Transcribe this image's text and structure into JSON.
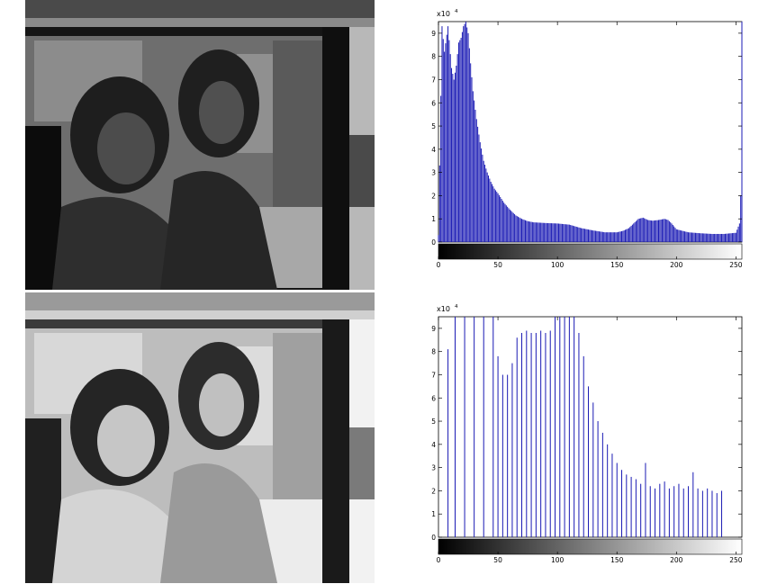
{
  "chart_data": [
    {
      "type": "bar",
      "title": "",
      "xlabel": "",
      "ylabel": "",
      "exponent_label": "x10",
      "exponent_power": "4",
      "xlim": [
        0,
        255
      ],
      "ylim": [
        0,
        9.5
      ],
      "x_ticks": [
        0,
        50,
        100,
        150,
        200,
        250
      ],
      "y_ticks": [
        0,
        1,
        2,
        3,
        4,
        5,
        6,
        7,
        8,
        9
      ],
      "grid": false,
      "series": [
        {
          "comment_anchor_mode": "interpolated",
          "x": [
            0,
            3,
            5,
            8,
            11,
            13,
            15,
            17,
            19,
            21,
            23,
            25,
            27,
            29,
            32,
            35,
            38,
            41,
            44,
            47,
            50,
            55,
            60,
            65,
            70,
            75,
            80,
            90,
            100,
            110,
            120,
            130,
            140,
            150,
            155,
            160,
            165,
            168,
            172,
            176,
            180,
            185,
            190,
            193,
            196,
            200,
            210,
            220,
            230,
            240,
            250,
            253,
            254,
            255
          ],
          "values": [
            0.3,
            9.3,
            8.2,
            9.3,
            7.5,
            7.0,
            7.6,
            8.6,
            8.8,
            9.3,
            9.5,
            9.0,
            7.7,
            6.5,
            5.3,
            4.3,
            3.5,
            3.0,
            2.6,
            2.3,
            2.1,
            1.7,
            1.4,
            1.15,
            1.0,
            0.9,
            0.85,
            0.82,
            0.8,
            0.75,
            0.6,
            0.5,
            0.42,
            0.42,
            0.48,
            0.6,
            0.85,
            1.0,
            1.05,
            0.95,
            0.92,
            0.95,
            1.0,
            0.95,
            0.8,
            0.55,
            0.42,
            0.38,
            0.35,
            0.35,
            0.4,
            0.8,
            2.0,
            9.5
          ]
        }
      ]
    },
    {
      "type": "bar",
      "title": "",
      "xlabel": "",
      "ylabel": "",
      "exponent_label": "x10",
      "exponent_power": "4",
      "xlim": [
        0,
        255
      ],
      "ylim": [
        0,
        9.5
      ],
      "x_ticks": [
        0,
        50,
        100,
        150,
        200,
        250
      ],
      "y_ticks": [
        0,
        1,
        2,
        3,
        4,
        5,
        6,
        7,
        8,
        9
      ],
      "grid": false,
      "series": [
        {
          "x": [
            0,
            4,
            8,
            12,
            14,
            18,
            22,
            26,
            30,
            34,
            38,
            42,
            46,
            50,
            54,
            58,
            62,
            66,
            70,
            74,
            78,
            82,
            86,
            90,
            94,
            98,
            102,
            106,
            110,
            114,
            118,
            122,
            126,
            130,
            134,
            138,
            142,
            146,
            150,
            154,
            158,
            162,
            166,
            170,
            174,
            178,
            182,
            186,
            190,
            194,
            198,
            202,
            206,
            210,
            214,
            218,
            222,
            226,
            230,
            234,
            238
          ],
          "values": [
            0,
            0,
            8.1,
            0,
            9.5,
            0,
            9.5,
            0,
            9.5,
            0,
            9.5,
            0,
            9.5,
            7.8,
            7.0,
            7.0,
            7.5,
            8.6,
            8.8,
            8.9,
            8.8,
            8.8,
            8.9,
            8.8,
            8.9,
            9.5,
            9.5,
            9.5,
            9.5,
            9.5,
            8.8,
            7.8,
            6.5,
            5.8,
            5.0,
            4.5,
            4.0,
            3.6,
            3.2,
            2.9,
            2.7,
            2.6,
            2.5,
            2.3,
            3.2,
            2.2,
            2.1,
            2.3,
            2.4,
            2.1,
            2.2,
            2.3,
            2.1,
            2.2,
            2.8,
            2.1,
            2.0,
            2.1,
            2.0,
            1.9,
            2.0
          ]
        }
      ]
    }
  ]
}
